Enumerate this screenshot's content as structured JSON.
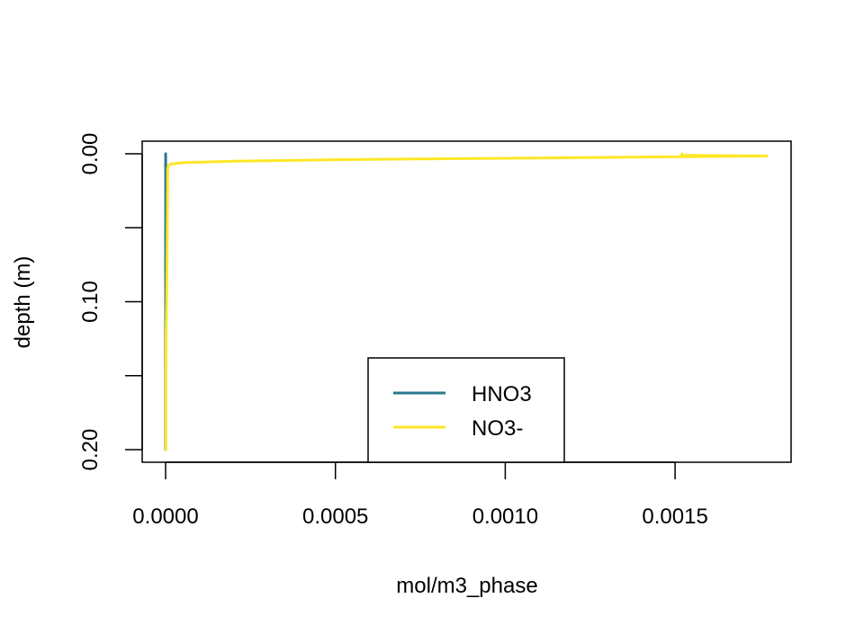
{
  "chart_data": {
    "type": "line",
    "title": "",
    "xlabel": "mol/m3_phase",
    "ylabel": "depth (m)",
    "xlim": [
      0,
      0.00177
    ],
    "ylim": [
      0,
      0.2
    ],
    "y_reversed": true,
    "grid": false,
    "legend_position": "bottom-center",
    "x_ticks": [
      0,
      0.0005,
      0.001,
      0.0015
    ],
    "x_tick_labels": [
      "0.0000",
      "0.0005",
      "0.0010",
      "0.0015"
    ],
    "y_ticks": [
      0,
      0.05,
      0.1,
      0.15,
      0.2
    ],
    "y_tick_labels": [
      "0.00",
      "",
      "0.10",
      "",
      "0.20"
    ],
    "series": [
      {
        "name": "HNO3",
        "color": "#2a788e",
        "points": [
          [
            1e-07,
            0.0
          ],
          [
            2e-07,
            0.002
          ],
          [
            2e-07,
            0.01
          ],
          [
            1e-07,
            0.05
          ],
          [
            1e-07,
            0.1
          ],
          [
            0.0,
            0.15
          ],
          [
            0.0,
            0.2
          ]
        ]
      },
      {
        "name": "NO3-",
        "color": "#fde725",
        "points": [
          [
            0.00152,
            0.0
          ],
          [
            0.00152,
            0.001
          ],
          [
            0.00177,
            0.0015
          ],
          [
            0.00152,
            0.002
          ],
          [
            0.001,
            0.003
          ],
          [
            0.0005,
            0.004
          ],
          [
            0.0002,
            0.005
          ],
          [
            5e-05,
            0.006
          ],
          [
            1.5e-05,
            0.007
          ],
          [
            8e-06,
            0.008
          ],
          [
            6e-06,
            0.01
          ],
          [
            5e-06,
            0.05
          ],
          [
            3e-06,
            0.1
          ],
          [
            1.5e-06,
            0.12
          ],
          [
            1e-06,
            0.15
          ],
          [
            1e-06,
            0.2
          ]
        ]
      }
    ]
  }
}
